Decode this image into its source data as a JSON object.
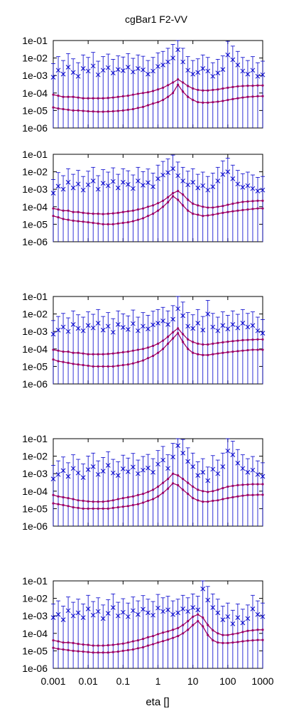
{
  "chart_data": {
    "type": "scatter",
    "title": "cgBar1 F2-VV",
    "xlabel": "eta []",
    "x_scale": "log",
    "y_scale": "log",
    "xlim": [
      0.001,
      1000
    ],
    "ylim": [
      1e-06,
      0.1
    ],
    "x_ticks": [
      "0.001",
      "0.01",
      "0.1",
      "1",
      "10",
      "100",
      "1000"
    ],
    "y_ticks": [
      "1e-06",
      "1e-05",
      "1e-04",
      "1e-03",
      "1e-02",
      "1e-01"
    ],
    "grid": false,
    "legend": "none",
    "colors": {
      "points": "#0000cc",
      "curves": "#990066",
      "axes": "#000000"
    },
    "panels": [
      {
        "x": [
          0.001,
          0.00139,
          0.00193,
          0.00268,
          0.00373,
          0.00518,
          0.0072,
          0.01,
          0.0139,
          0.0193,
          0.0268,
          0.0373,
          0.0518,
          0.072,
          0.1,
          0.139,
          0.193,
          0.268,
          0.373,
          0.518,
          0.72,
          1,
          1.39,
          1.93,
          2.68,
          3.73,
          5.18,
          7.2,
          10,
          13.9,
          19.3,
          26.8,
          37.3,
          51.8,
          72,
          100,
          139,
          193,
          268,
          373,
          518,
          720,
          1000
        ],
        "y": [
          0.0008,
          0.002,
          0.0012,
          0.003,
          0.0015,
          0.0009,
          0.0025,
          0.0018,
          0.0035,
          0.0011,
          0.002,
          0.0028,
          0.0014,
          0.0022,
          0.0019,
          0.003,
          0.0016,
          0.0025,
          0.0021,
          0.0012,
          0.0018,
          0.0033,
          0.004,
          0.006,
          0.01,
          0.03,
          0.006,
          0.002,
          0.0012,
          0.0015,
          0.0025,
          0.0018,
          0.0009,
          0.0014,
          0.0022,
          0.015,
          0.008,
          0.004,
          0.0018,
          0.0012,
          0.002,
          0.0009,
          0.0011
        ],
        "upper_curve": [
          8e-05,
          7e-05,
          6e-05,
          6e-05,
          6e-05,
          5.5e-05,
          5e-05,
          5e-05,
          5e-05,
          5e-05,
          5e-05,
          5.2e-05,
          5.5e-05,
          6e-05,
          6.5e-05,
          7e-05,
          8e-05,
          9e-05,
          0.0001,
          0.00011,
          0.00013,
          0.00016,
          0.0002,
          0.00028,
          0.0004,
          0.0006,
          0.0004,
          0.00025,
          0.00018,
          0.00015,
          0.00014,
          0.00014,
          0.00015,
          0.00016,
          0.00018,
          0.0002,
          0.00022,
          0.00024,
          0.00025,
          0.00026,
          0.00026,
          0.00027,
          0.00027
        ],
        "lower_curve": [
          1.5e-05,
          1.3e-05,
          1.2e-05,
          1.1e-05,
          1e-05,
          1e-05,
          9.5e-06,
          9e-06,
          8.8e-06,
          8.5e-06,
          8.5e-06,
          8.8e-06,
          9e-06,
          9.5e-06,
          1e-05,
          1.1e-05,
          1.2e-05,
          1.4e-05,
          1.6e-05,
          2e-05,
          2.5e-05,
          3e-05,
          4e-05,
          6e-05,
          0.0001,
          0.0003,
          0.00012,
          6e-05,
          4e-05,
          3e-05,
          2.8e-05,
          2.8e-05,
          3e-05,
          3.2e-05,
          3.5e-05,
          4e-05,
          4.5e-05,
          5e-05,
          5.5e-05,
          6e-05,
          6.2e-05,
          6.5e-05,
          6.6e-05
        ]
      },
      {
        "x": [
          0.001,
          0.00139,
          0.00193,
          0.00268,
          0.00373,
          0.00518,
          0.0072,
          0.01,
          0.0139,
          0.0193,
          0.0268,
          0.0373,
          0.0518,
          0.072,
          0.1,
          0.139,
          0.193,
          0.268,
          0.373,
          0.518,
          0.72,
          1,
          1.39,
          1.93,
          2.68,
          3.73,
          5.18,
          7.2,
          10,
          13.9,
          19.3,
          26.8,
          37.3,
          51.8,
          72,
          100,
          139,
          193,
          268,
          373,
          518,
          720,
          1000
        ],
        "y": [
          0.0006,
          0.0015,
          0.001,
          0.0025,
          0.0012,
          0.002,
          0.0009,
          0.0018,
          0.003,
          0.001,
          0.0022,
          0.0016,
          0.0028,
          0.0012,
          0.0025,
          0.0019,
          0.0011,
          0.003,
          0.0017,
          0.0024,
          0.0014,
          0.004,
          0.0065,
          0.009,
          0.015,
          0.006,
          0.003,
          0.0018,
          0.0025,
          0.0012,
          0.0016,
          0.0009,
          0.0014,
          0.003,
          0.007,
          0.01,
          0.004,
          0.002,
          0.0013,
          0.0016,
          0.0011,
          0.0008,
          0.0009
        ],
        "upper_curve": [
          8e-05,
          7e-05,
          6e-05,
          6e-05,
          5e-05,
          5e-05,
          4.5e-05,
          4.2e-05,
          4e-05,
          4e-05,
          3.8e-05,
          4e-05,
          4.2e-05,
          4.5e-05,
          5e-05,
          5.5e-05,
          6e-05,
          7e-05,
          8e-05,
          0.0001,
          0.00012,
          0.00016,
          0.00022,
          0.00035,
          0.0006,
          0.0008,
          0.0005,
          0.00025,
          0.00015,
          0.00012,
          0.0001,
          9e-05,
          9e-05,
          0.0001,
          0.00011,
          0.00013,
          0.00015,
          0.00017,
          0.00019,
          0.0002,
          0.00021,
          0.00022,
          0.00022
        ],
        "lower_curve": [
          3e-05,
          2.5e-05,
          2e-05,
          1.8e-05,
          1.6e-05,
          1.5e-05,
          1.4e-05,
          1.3e-05,
          1.2e-05,
          1.1e-05,
          1e-05,
          1e-05,
          1e-05,
          1.1e-05,
          1.2e-05,
          1.3e-05,
          1.5e-05,
          1.8e-05,
          2.2e-05,
          3e-05,
          4e-05,
          6e-05,
          0.0001,
          0.00018,
          0.0004,
          0.00025,
          0.00012,
          6e-05,
          4e-05,
          3.5e-05,
          3e-05,
          3.2e-05,
          3.5e-05,
          4e-05,
          4.5e-05,
          5e-05,
          5.5e-05,
          6e-05,
          6.5e-05,
          7e-05,
          7.5e-05,
          8e-05,
          8e-05
        ]
      },
      {
        "x": [
          0.001,
          0.00139,
          0.00193,
          0.00268,
          0.00373,
          0.00518,
          0.0072,
          0.01,
          0.0139,
          0.0193,
          0.0268,
          0.0373,
          0.0518,
          0.072,
          0.1,
          0.139,
          0.193,
          0.268,
          0.373,
          0.518,
          0.72,
          1,
          1.39,
          1.93,
          2.68,
          3.73,
          5.18,
          7.2,
          10,
          13.9,
          19.3,
          26.8,
          37.3,
          51.8,
          72,
          100,
          139,
          193,
          268,
          373,
          518,
          720,
          1000
        ],
        "y": [
          0.0007,
          0.0012,
          0.0018,
          0.001,
          0.0025,
          0.0015,
          0.0011,
          0.0022,
          0.0016,
          0.003,
          0.0012,
          0.002,
          0.0009,
          0.0025,
          0.0017,
          0.0013,
          0.0028,
          0.0011,
          0.002,
          0.0014,
          0.0024,
          0.003,
          0.004,
          0.0025,
          0.005,
          0.02,
          0.008,
          0.002,
          0.0015,
          0.003,
          0.0012,
          0.01,
          0.0018,
          0.0011,
          0.0022,
          0.0014,
          0.0025,
          0.0016,
          0.003,
          0.0018,
          0.0022,
          0.0011,
          0.0008
        ],
        "upper_curve": [
          9e-05,
          8e-05,
          7e-05,
          7e-05,
          6e-05,
          6e-05,
          5.5e-05,
          5e-05,
          5e-05,
          5e-05,
          5e-05,
          5.2e-05,
          5.5e-05,
          6e-05,
          6.5e-05,
          7e-05,
          8e-05,
          9e-05,
          0.0001,
          0.00012,
          0.00015,
          0.0002,
          0.0003,
          0.0005,
          0.0009,
          0.0015,
          0.0007,
          0.00035,
          0.00025,
          0.0002,
          0.00018,
          0.00018,
          0.0002,
          0.00022,
          0.00024,
          0.00026,
          0.00028,
          0.0003,
          0.00032,
          0.00033,
          0.00034,
          0.00035,
          0.00035
        ],
        "lower_curve": [
          2.5e-05,
          2e-05,
          1.8e-05,
          1.6e-05,
          1.4e-05,
          1.3e-05,
          1.2e-05,
          1.1e-05,
          1e-05,
          1e-05,
          1e-05,
          1e-05,
          1e-05,
          1.1e-05,
          1.2e-05,
          1.3e-05,
          1.5e-05,
          1.8e-05,
          2.2e-05,
          3e-05,
          4e-05,
          6e-05,
          0.0001,
          0.0002,
          0.0004,
          0.0008,
          0.00025,
          0.0001,
          6e-05,
          5e-05,
          4.5e-05,
          4.5e-05,
          5e-05,
          5.5e-05,
          6e-05,
          6.5e-05,
          7e-05,
          7.5e-05,
          8e-05,
          8.5e-05,
          9e-05,
          9e-05,
          9e-05
        ]
      },
      {
        "x": [
          0.001,
          0.00139,
          0.00193,
          0.00268,
          0.00373,
          0.00518,
          0.0072,
          0.01,
          0.0139,
          0.0193,
          0.0268,
          0.0373,
          0.0518,
          0.072,
          0.1,
          0.139,
          0.193,
          0.268,
          0.373,
          0.518,
          0.72,
          1,
          1.39,
          1.93,
          2.68,
          3.73,
          5.18,
          7.2,
          10,
          13.9,
          19.3,
          26.8,
          37.3,
          51.8,
          72,
          100,
          139,
          193,
          268,
          373,
          518,
          720,
          1000
        ],
        "y": [
          0.0005,
          0.0009,
          0.0015,
          0.0007,
          0.002,
          0.0011,
          0.0006,
          0.0017,
          0.0025,
          0.0009,
          0.0014,
          0.003,
          0.0011,
          0.0008,
          0.0019,
          0.0013,
          0.0024,
          0.001,
          0.0016,
          0.0021,
          0.0012,
          0.0035,
          0.006,
          0.002,
          0.009,
          0.04,
          0.015,
          0.005,
          0.0025,
          0.0008,
          0.0012,
          0.0004,
          0.0018,
          0.001,
          0.0025,
          0.02,
          0.012,
          0.004,
          0.002,
          0.0012,
          0.0016,
          0.0009,
          0.0007
        ],
        "upper_curve": [
          6e-05,
          5e-05,
          4.5e-05,
          4e-05,
          3.5e-05,
          3e-05,
          2.8e-05,
          2.6e-05,
          2.5e-05,
          2.5e-05,
          2.5e-05,
          2.7e-05,
          3e-05,
          3.5e-05,
          4e-05,
          4.5e-05,
          5e-05,
          6e-05,
          7e-05,
          9e-05,
          0.00012,
          0.00018,
          0.0003,
          0.0005,
          0.001,
          0.0008,
          0.0005,
          0.0003,
          0.00018,
          0.00012,
          0.0001,
          9e-05,
          0.0001,
          0.00012,
          0.00015,
          0.00018,
          0.0002,
          0.00022,
          0.00023,
          0.00024,
          0.00025,
          0.00025,
          0.00025
        ],
        "lower_curve": [
          2e-05,
          1.8e-05,
          1.6e-05,
          1.4e-05,
          1.2e-05,
          1.1e-05,
          1e-05,
          1e-05,
          1e-05,
          1e-05,
          1e-05,
          1e-05,
          1.1e-05,
          1.2e-05,
          1.3e-05,
          1.4e-05,
          1.6e-05,
          1.8e-05,
          2.2e-05,
          2.8e-05,
          3.5e-05,
          5e-05,
          8e-05,
          0.00014,
          0.00028,
          0.00022,
          0.00012,
          7e-05,
          4e-05,
          3e-05,
          2.5e-05,
          2.5e-05,
          2.8e-05,
          3e-05,
          3.5e-05,
          4e-05,
          4.5e-05,
          5e-05,
          5.5e-05,
          6e-05,
          6e-05,
          6.2e-05,
          6.2e-05
        ]
      },
      {
        "x": [
          0.001,
          0.00139,
          0.00193,
          0.00268,
          0.00373,
          0.00518,
          0.0072,
          0.01,
          0.0139,
          0.0193,
          0.0268,
          0.0373,
          0.0518,
          0.072,
          0.1,
          0.139,
          0.193,
          0.268,
          0.373,
          0.518,
          0.72,
          1,
          1.39,
          1.93,
          2.68,
          3.73,
          5.18,
          7.2,
          10,
          13.9,
          19.3,
          26.8,
          37.3,
          51.8,
          72,
          100,
          139,
          193,
          268,
          373,
          518,
          720,
          1000
        ],
        "y": [
          0.0008,
          0.0012,
          0.0006,
          0.002,
          0.001,
          0.0015,
          0.0008,
          0.0025,
          0.0011,
          0.0018,
          0.0007,
          0.0014,
          0.003,
          0.001,
          0.0016,
          0.0009,
          0.002,
          0.0012,
          0.0024,
          0.0015,
          0.0011,
          0.0028,
          0.0018,
          0.0022,
          0.0012,
          0.0015,
          0.0025,
          0.0018,
          0.003,
          0.0022,
          0.035,
          0.008,
          0.003,
          0.0015,
          0.0006,
          0.0009,
          0.00035,
          0.0008,
          0.0004,
          0.0007,
          0.0025,
          0.0012,
          0.0009
        ],
        "upper_curve": [
          4e-05,
          3.5e-05,
          3e-05,
          3e-05,
          2.8e-05,
          2.5e-05,
          2.3e-05,
          2.2e-05,
          2e-05,
          2e-05,
          2e-05,
          2.1e-05,
          2.2e-05,
          2.4e-05,
          2.6e-05,
          3e-05,
          3.5e-05,
          4e-05,
          4.8e-05,
          6e-05,
          7e-05,
          9e-05,
          0.00011,
          0.00013,
          0.00016,
          0.0002,
          0.0003,
          0.0005,
          0.0009,
          0.0012,
          0.0008,
          0.0003,
          0.00015,
          0.0001,
          8e-05,
          8e-05,
          9e-05,
          0.0001,
          0.00012,
          0.00014,
          0.00015,
          0.00016,
          0.00016
        ],
        "lower_curve": [
          1.5e-05,
          1.3e-05,
          1.2e-05,
          1.1e-05,
          1e-05,
          9.5e-06,
          9e-06,
          8.5e-06,
          8e-06,
          8e-06,
          8e-06,
          8e-06,
          8.5e-06,
          9e-06,
          1e-05,
          1.1e-05,
          1.2e-05,
          1.4e-05,
          1.6e-05,
          2e-05,
          2.4e-05,
          3e-05,
          3.6e-05,
          4.4e-05,
          5.5e-05,
          7e-05,
          0.0001,
          0.00016,
          0.0003,
          0.0005,
          0.00025,
          8e-05,
          4e-05,
          3e-05,
          2.8e-05,
          2.8e-05,
          3e-05,
          3.2e-05,
          3.5e-05,
          3.8e-05,
          4e-05,
          4.2e-05,
          4.2e-05
        ]
      }
    ]
  }
}
